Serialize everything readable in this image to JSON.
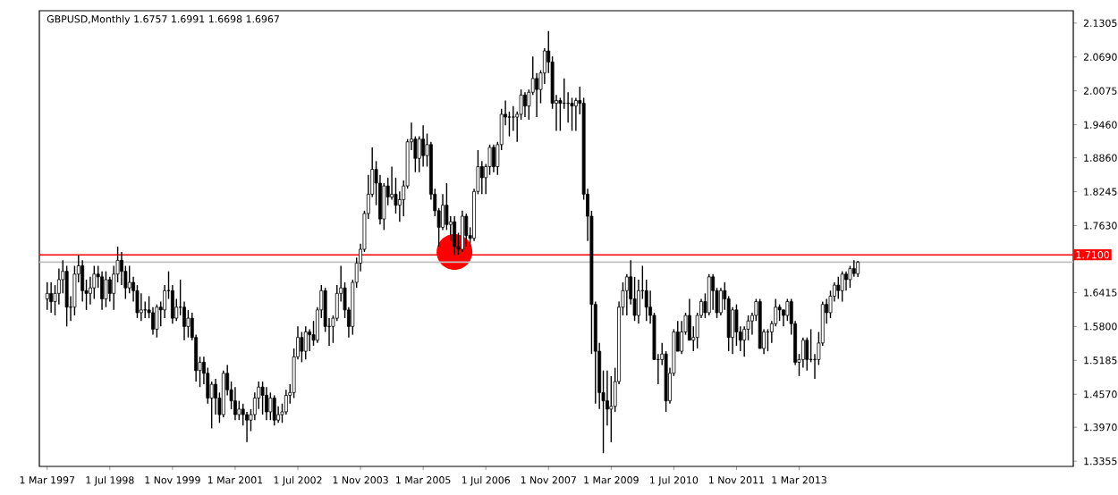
{
  "chart_data": {
    "type": "candlestick",
    "title": "GBPUSD,Monthly  1.6757 1.6991 1.6698 1.6967",
    "color": "#000000",
    "x": [
      "1997-03",
      "1997-04",
      "1997-05",
      "1997-06",
      "1997-07",
      "1997-08",
      "1997-09",
      "1997-10",
      "1997-11",
      "1997-12",
      "1998-01",
      "1998-02",
      "1998-03",
      "1998-04",
      "1998-05",
      "1998-06",
      "1998-07",
      "1998-08",
      "1998-09",
      "1998-10",
      "1998-11",
      "1998-12",
      "1999-01",
      "1999-02",
      "1999-03",
      "1999-04",
      "1999-05",
      "1999-06",
      "1999-07",
      "1999-08",
      "1999-09",
      "1999-10",
      "1999-11",
      "1999-12",
      "2000-01",
      "2000-02",
      "2000-03",
      "2000-04",
      "2000-05",
      "2000-06",
      "2000-07",
      "2000-08",
      "2000-09",
      "2000-10",
      "2000-11",
      "2000-12",
      "2001-01",
      "2001-02",
      "2001-03",
      "2001-04",
      "2001-05",
      "2001-06",
      "2001-07",
      "2001-08",
      "2001-09",
      "2001-10",
      "2001-11",
      "2001-12",
      "2002-01",
      "2002-02",
      "2002-03",
      "2002-04",
      "2002-05",
      "2002-06",
      "2002-07",
      "2002-08",
      "2002-09",
      "2002-10",
      "2002-11",
      "2002-12",
      "2003-01",
      "2003-02",
      "2003-03",
      "2003-04",
      "2003-05",
      "2003-06",
      "2003-07",
      "2003-08",
      "2003-09",
      "2003-10",
      "2003-11",
      "2003-12",
      "2004-01",
      "2004-02",
      "2004-03",
      "2004-04",
      "2004-05",
      "2004-06",
      "2004-07",
      "2004-08",
      "2004-09",
      "2004-10",
      "2004-11",
      "2004-12",
      "2005-01",
      "2005-02",
      "2005-03",
      "2005-04",
      "2005-05",
      "2005-06",
      "2005-07",
      "2005-08",
      "2005-09",
      "2005-10",
      "2005-11",
      "2005-12",
      "2006-01",
      "2006-02",
      "2006-03",
      "2006-04",
      "2006-05",
      "2006-06",
      "2006-07",
      "2006-08",
      "2006-09",
      "2006-10",
      "2006-11",
      "2006-12",
      "2007-01",
      "2007-02",
      "2007-03",
      "2007-04",
      "2007-05",
      "2007-06",
      "2007-07",
      "2007-08",
      "2007-09",
      "2007-10",
      "2007-11",
      "2007-12",
      "2008-01",
      "2008-02",
      "2008-03",
      "2008-04",
      "2008-05",
      "2008-06",
      "2008-07",
      "2008-08",
      "2008-09",
      "2008-10",
      "2008-11",
      "2008-12",
      "2009-01",
      "2009-02",
      "2009-03",
      "2009-04",
      "2009-05",
      "2009-06",
      "2009-07",
      "2009-08",
      "2009-09",
      "2009-10",
      "2009-11",
      "2009-12",
      "2010-01",
      "2010-02",
      "2010-03",
      "2010-04",
      "2010-05",
      "2010-06",
      "2010-07",
      "2010-08",
      "2010-09",
      "2010-10",
      "2010-11",
      "2010-12",
      "2011-01",
      "2011-02",
      "2011-03",
      "2011-04",
      "2011-05",
      "2011-06",
      "2011-07",
      "2011-08",
      "2011-09",
      "2011-10",
      "2011-11",
      "2011-12",
      "2012-01",
      "2012-02",
      "2012-03",
      "2012-04",
      "2012-05",
      "2012-06",
      "2012-07",
      "2012-08",
      "2012-09",
      "2012-10",
      "2012-11",
      "2012-12",
      "2013-01",
      "2013-02",
      "2013-03",
      "2013-04",
      "2013-05",
      "2013-06",
      "2013-07",
      "2013-08",
      "2013-09",
      "2013-10",
      "2013-11",
      "2013-12",
      "2014-01",
      "2014-02",
      "2014-03",
      "2014-04",
      "2014-05",
      "2014-06"
    ],
    "ohlc": [
      [
        1.63,
        1.66,
        1.61,
        1.64
      ],
      [
        1.64,
        1.66,
        1.605,
        1.625
      ],
      [
        1.625,
        1.655,
        1.6,
        1.64
      ],
      [
        1.64,
        1.685,
        1.62,
        1.665
      ],
      [
        1.665,
        1.7,
        1.64,
        1.68
      ],
      [
        1.68,
        1.69,
        1.58,
        1.615
      ],
      [
        1.615,
        1.635,
        1.59,
        1.615
      ],
      [
        1.615,
        1.69,
        1.6,
        1.675
      ],
      [
        1.675,
        1.71,
        1.66,
        1.69
      ],
      [
        1.69,
        1.7,
        1.625,
        1.645
      ],
      [
        1.645,
        1.665,
        1.61,
        1.64
      ],
      [
        1.64,
        1.67,
        1.62,
        1.65
      ],
      [
        1.65,
        1.69,
        1.63,
        1.675
      ],
      [
        1.675,
        1.69,
        1.65,
        1.67
      ],
      [
        1.67,
        1.68,
        1.61,
        1.63
      ],
      [
        1.63,
        1.68,
        1.615,
        1.665
      ],
      [
        1.665,
        1.67,
        1.625,
        1.64
      ],
      [
        1.64,
        1.69,
        1.61,
        1.675
      ],
      [
        1.675,
        1.725,
        1.66,
        1.7
      ],
      [
        1.7,
        1.715,
        1.655,
        1.68
      ],
      [
        1.68,
        1.69,
        1.63,
        1.65
      ],
      [
        1.65,
        1.69,
        1.64,
        1.66
      ],
      [
        1.66,
        1.67,
        1.625,
        1.645
      ],
      [
        1.645,
        1.655,
        1.595,
        1.605
      ],
      [
        1.605,
        1.64,
        1.59,
        1.61
      ],
      [
        1.61,
        1.625,
        1.595,
        1.61
      ],
      [
        1.61,
        1.635,
        1.595,
        1.605
      ],
      [
        1.605,
        1.615,
        1.565,
        1.575
      ],
      [
        1.575,
        1.62,
        1.56,
        1.615
      ],
      [
        1.615,
        1.625,
        1.58,
        1.61
      ],
      [
        1.61,
        1.655,
        1.595,
        1.645
      ],
      [
        1.645,
        1.68,
        1.63,
        1.645
      ],
      [
        1.645,
        1.655,
        1.585,
        1.595
      ],
      [
        1.595,
        1.63,
        1.59,
        1.615
      ],
      [
        1.615,
        1.665,
        1.6,
        1.615
      ],
      [
        1.615,
        1.625,
        1.555,
        1.58
      ],
      [
        1.58,
        1.61,
        1.56,
        1.595
      ],
      [
        1.595,
        1.605,
        1.555,
        1.56
      ],
      [
        1.56,
        1.565,
        1.48,
        1.5
      ],
      [
        1.5,
        1.525,
        1.47,
        1.515
      ],
      [
        1.515,
        1.525,
        1.475,
        1.495
      ],
      [
        1.495,
        1.505,
        1.44,
        1.45
      ],
      [
        1.45,
        1.48,
        1.395,
        1.475
      ],
      [
        1.475,
        1.485,
        1.42,
        1.45
      ],
      [
        1.45,
        1.46,
        1.405,
        1.42
      ],
      [
        1.42,
        1.5,
        1.415,
        1.495
      ],
      [
        1.495,
        1.51,
        1.455,
        1.465
      ],
      [
        1.465,
        1.48,
        1.43,
        1.445
      ],
      [
        1.445,
        1.47,
        1.41,
        1.42
      ],
      [
        1.42,
        1.445,
        1.41,
        1.43
      ],
      [
        1.43,
        1.44,
        1.4,
        1.42
      ],
      [
        1.42,
        1.425,
        1.37,
        1.41
      ],
      [
        1.41,
        1.43,
        1.39,
        1.42
      ],
      [
        1.42,
        1.46,
        1.41,
        1.45
      ],
      [
        1.45,
        1.48,
        1.43,
        1.47
      ],
      [
        1.47,
        1.48,
        1.42,
        1.455
      ],
      [
        1.455,
        1.47,
        1.41,
        1.425
      ],
      [
        1.425,
        1.46,
        1.41,
        1.45
      ],
      [
        1.45,
        1.455,
        1.4,
        1.41
      ],
      [
        1.41,
        1.435,
        1.405,
        1.42
      ],
      [
        1.42,
        1.44,
        1.405,
        1.425
      ],
      [
        1.425,
        1.465,
        1.42,
        1.455
      ],
      [
        1.455,
        1.475,
        1.44,
        1.46
      ],
      [
        1.46,
        1.54,
        1.45,
        1.525
      ],
      [
        1.525,
        1.58,
        1.52,
        1.56
      ],
      [
        1.56,
        1.57,
        1.515,
        1.535
      ],
      [
        1.535,
        1.58,
        1.52,
        1.57
      ],
      [
        1.57,
        1.575,
        1.535,
        1.565
      ],
      [
        1.565,
        1.59,
        1.545,
        1.555
      ],
      [
        1.555,
        1.615,
        1.55,
        1.61
      ],
      [
        1.61,
        1.655,
        1.595,
        1.645
      ],
      [
        1.645,
        1.65,
        1.57,
        1.58
      ],
      [
        1.58,
        1.595,
        1.545,
        1.58
      ],
      [
        1.58,
        1.6,
        1.55,
        1.595
      ],
      [
        1.595,
        1.655,
        1.59,
        1.64
      ],
      [
        1.64,
        1.69,
        1.625,
        1.65
      ],
      [
        1.65,
        1.66,
        1.595,
        1.61
      ],
      [
        1.61,
        1.615,
        1.56,
        1.58
      ],
      [
        1.58,
        1.665,
        1.565,
        1.66
      ],
      [
        1.66,
        1.705,
        1.65,
        1.695
      ],
      [
        1.695,
        1.73,
        1.68,
        1.72
      ],
      [
        1.72,
        1.79,
        1.715,
        1.785
      ],
      [
        1.785,
        1.855,
        1.775,
        1.82
      ],
      [
        1.82,
        1.905,
        1.815,
        1.865
      ],
      [
        1.865,
        1.88,
        1.8,
        1.84
      ],
      [
        1.84,
        1.855,
        1.765,
        1.775
      ],
      [
        1.775,
        1.84,
        1.755,
        1.835
      ],
      [
        1.835,
        1.85,
        1.8,
        1.815
      ],
      [
        1.815,
        1.87,
        1.81,
        1.82
      ],
      [
        1.82,
        1.85,
        1.785,
        1.8
      ],
      [
        1.8,
        1.825,
        1.77,
        1.81
      ],
      [
        1.81,
        1.845,
        1.78,
        1.835
      ],
      [
        1.835,
        1.92,
        1.83,
        1.915
      ],
      [
        1.915,
        1.95,
        1.9,
        1.92
      ],
      [
        1.92,
        1.925,
        1.86,
        1.885
      ],
      [
        1.885,
        1.925,
        1.86,
        1.92
      ],
      [
        1.92,
        1.945,
        1.87,
        1.89
      ],
      [
        1.89,
        1.93,
        1.87,
        1.91
      ],
      [
        1.91,
        1.915,
        1.81,
        1.82
      ],
      [
        1.82,
        1.83,
        1.78,
        1.79
      ],
      [
        1.79,
        1.795,
        1.725,
        1.76
      ],
      [
        1.76,
        1.82,
        1.755,
        1.8
      ],
      [
        1.8,
        1.84,
        1.755,
        1.765
      ],
      [
        1.765,
        1.78,
        1.735,
        1.77
      ],
      [
        1.77,
        1.78,
        1.71,
        1.725
      ],
      [
        1.725,
        1.75,
        1.71,
        1.72
      ],
      [
        1.72,
        1.79,
        1.715,
        1.78
      ],
      [
        1.78,
        1.785,
        1.725,
        1.745
      ],
      [
        1.745,
        1.76,
        1.725,
        1.74
      ],
      [
        1.74,
        1.83,
        1.735,
        1.825
      ],
      [
        1.825,
        1.9,
        1.82,
        1.87
      ],
      [
        1.87,
        1.88,
        1.82,
        1.85
      ],
      [
        1.85,
        1.875,
        1.82,
        1.87
      ],
      [
        1.87,
        1.91,
        1.855,
        1.905
      ],
      [
        1.905,
        1.91,
        1.86,
        1.87
      ],
      [
        1.87,
        1.915,
        1.855,
        1.91
      ],
      [
        1.91,
        1.975,
        1.9,
        1.965
      ],
      [
        1.965,
        1.99,
        1.945,
        1.96
      ],
      [
        1.96,
        1.97,
        1.925,
        1.96
      ],
      [
        1.96,
        1.98,
        1.935,
        1.96
      ],
      [
        1.96,
        1.97,
        1.915,
        1.965
      ],
      [
        1.965,
        2.01,
        1.955,
        2.0
      ],
      [
        2.0,
        2.005,
        1.96,
        1.98
      ],
      [
        1.98,
        2.01,
        1.955,
        2.005
      ],
      [
        2.005,
        2.07,
        2.0,
        2.03
      ],
      [
        2.03,
        2.04,
        1.96,
        2.01
      ],
      [
        2.01,
        2.045,
        1.985,
        2.04
      ],
      [
        2.04,
        2.085,
        2.02,
        2.08
      ],
      [
        2.08,
        2.116,
        2.04,
        2.06
      ],
      [
        2.06,
        2.07,
        1.975,
        1.985
      ],
      [
        1.985,
        2.0,
        1.935,
        1.99
      ],
      [
        1.99,
        1.995,
        1.935,
        1.985
      ],
      [
        1.985,
        2.03,
        1.975,
        1.985
      ],
      [
        1.985,
        2.005,
        1.95,
        1.985
      ],
      [
        1.985,
        1.995,
        1.935,
        1.98
      ],
      [
        1.98,
        1.995,
        1.935,
        1.99
      ],
      [
        1.99,
        2.015,
        1.965,
        1.985
      ],
      [
        1.985,
        1.995,
        1.81,
        1.82
      ],
      [
        1.82,
        1.83,
        1.735,
        1.78
      ],
      [
        1.78,
        1.79,
        1.53,
        1.62
      ],
      [
        1.62,
        1.625,
        1.44,
        1.535
      ],
      [
        1.535,
        1.55,
        1.43,
        1.46
      ],
      [
        1.46,
        1.5,
        1.35,
        1.445
      ],
      [
        1.445,
        1.5,
        1.4,
        1.43
      ],
      [
        1.43,
        1.49,
        1.37,
        1.435
      ],
      [
        1.435,
        1.505,
        1.425,
        1.48
      ],
      [
        1.48,
        1.625,
        1.475,
        1.615
      ],
      [
        1.615,
        1.66,
        1.6,
        1.645
      ],
      [
        1.645,
        1.675,
        1.6,
        1.67
      ],
      [
        1.67,
        1.7,
        1.62,
        1.63
      ],
      [
        1.63,
        1.67,
        1.59,
        1.6
      ],
      [
        1.6,
        1.665,
        1.585,
        1.645
      ],
      [
        1.645,
        1.69,
        1.63,
        1.645
      ],
      [
        1.645,
        1.665,
        1.59,
        1.615
      ],
      [
        1.615,
        1.645,
        1.585,
        1.6
      ],
      [
        1.6,
        1.605,
        1.52,
        1.52
      ],
      [
        1.52,
        1.53,
        1.475,
        1.52
      ],
      [
        1.52,
        1.55,
        1.51,
        1.53
      ],
      [
        1.53,
        1.535,
        1.425,
        1.445
      ],
      [
        1.445,
        1.505,
        1.44,
        1.495
      ],
      [
        1.495,
        1.575,
        1.49,
        1.57
      ],
      [
        1.57,
        1.59,
        1.535,
        1.535
      ],
      [
        1.535,
        1.59,
        1.53,
        1.57
      ],
      [
        1.57,
        1.605,
        1.565,
        1.6
      ],
      [
        1.6,
        1.63,
        1.555,
        1.555
      ],
      [
        1.555,
        1.58,
        1.535,
        1.56
      ],
      [
        1.56,
        1.605,
        1.54,
        1.6
      ],
      [
        1.6,
        1.63,
        1.595,
        1.625
      ],
      [
        1.625,
        1.64,
        1.595,
        1.605
      ],
      [
        1.605,
        1.675,
        1.6,
        1.67
      ],
      [
        1.67,
        1.675,
        1.61,
        1.645
      ],
      [
        1.645,
        1.65,
        1.595,
        1.605
      ],
      [
        1.605,
        1.65,
        1.6,
        1.645
      ],
      [
        1.645,
        1.66,
        1.61,
        1.63
      ],
      [
        1.63,
        1.635,
        1.535,
        1.56
      ],
      [
        1.56,
        1.615,
        1.53,
        1.61
      ],
      [
        1.61,
        1.62,
        1.545,
        1.57
      ],
      [
        1.57,
        1.58,
        1.535,
        1.555
      ],
      [
        1.555,
        1.58,
        1.525,
        1.575
      ],
      [
        1.575,
        1.6,
        1.555,
        1.59
      ],
      [
        1.59,
        1.605,
        1.565,
        1.6
      ],
      [
        1.6,
        1.63,
        1.59,
        1.625
      ],
      [
        1.625,
        1.63,
        1.54,
        1.54
      ],
      [
        1.54,
        1.575,
        1.53,
        1.57
      ],
      [
        1.57,
        1.575,
        1.535,
        1.57
      ],
      [
        1.57,
        1.59,
        1.55,
        1.585
      ],
      [
        1.585,
        1.63,
        1.58,
        1.615
      ],
      [
        1.615,
        1.62,
        1.59,
        1.61
      ],
      [
        1.61,
        1.61,
        1.58,
        1.6
      ],
      [
        1.6,
        1.63,
        1.59,
        1.625
      ],
      [
        1.625,
        1.63,
        1.565,
        1.585
      ],
      [
        1.585,
        1.59,
        1.51,
        1.515
      ],
      [
        1.515,
        1.53,
        1.49,
        1.52
      ],
      [
        1.52,
        1.56,
        1.505,
        1.555
      ],
      [
        1.555,
        1.56,
        1.5,
        1.52
      ],
      [
        1.52,
        1.575,
        1.515,
        1.52
      ],
      [
        1.52,
        1.53,
        1.485,
        1.52
      ],
      [
        1.52,
        1.57,
        1.51,
        1.55
      ],
      [
        1.55,
        1.625,
        1.545,
        1.62
      ],
      [
        1.62,
        1.63,
        1.585,
        1.605
      ],
      [
        1.605,
        1.645,
        1.595,
        1.635
      ],
      [
        1.635,
        1.66,
        1.625,
        1.655
      ],
      [
        1.655,
        1.67,
        1.63,
        1.645
      ],
      [
        1.645,
        1.68,
        1.625,
        1.675
      ],
      [
        1.675,
        1.68,
        1.645,
        1.665
      ],
      [
        1.665,
        1.69,
        1.65,
        1.685
      ],
      [
        1.685,
        1.7,
        1.67,
        1.676
      ],
      [
        1.6757,
        1.6991,
        1.6698,
        1.6967
      ]
    ],
    "xlim": [
      "1997-01",
      "2019-01"
    ],
    "xticks": [
      {
        "value": "1997-03",
        "label": "1 Mar 1997"
      },
      {
        "value": "1998-07",
        "label": "1 Jul 1998"
      },
      {
        "value": "1999-11",
        "label": "1 Nov 1999"
      },
      {
        "value": "2001-03",
        "label": "1 Mar 2001"
      },
      {
        "value": "2002-07",
        "label": "1 Jul 2002"
      },
      {
        "value": "2003-11",
        "label": "1 Nov 2003"
      },
      {
        "value": "2005-03",
        "label": "1 Mar 2005"
      },
      {
        "value": "2006-07",
        "label": "1 Jul 2006"
      },
      {
        "value": "2007-11",
        "label": "1 Nov 2007"
      },
      {
        "value": "2009-03",
        "label": "1 Mar 2009"
      },
      {
        "value": "2010-07",
        "label": "1 Jul 2010"
      },
      {
        "value": "2011-11",
        "label": "1 Nov 2011"
      },
      {
        "value": "2013-03",
        "label": "1 Mar 2013"
      }
    ],
    "ylim": [
      1.326,
      2.153
    ],
    "yticks": [
      1.3355,
      {
        "value": 1.397,
        "label": "1.3970"
      },
      {
        "value": 1.457,
        "label": "1.4570"
      },
      1.5185,
      {
        "value": 1.58,
        "label": "1.5800"
      },
      1.6415,
      {
        "value": 1.763,
        "label": "1.7630"
      },
      1.8245,
      {
        "value": 1.886,
        "label": "1.8860"
      },
      {
        "value": 1.946,
        "label": "1.9460"
      },
      2.0075,
      {
        "value": 2.069,
        "label": "2.0690"
      },
      2.1305
    ],
    "series": [
      {
        "type": "scatter",
        "x": [
          "2005-11"
        ],
        "values": [
          1.715
        ],
        "color": "#ff0000",
        "marker": "circle"
      }
    ],
    "ref_lines": [
      {
        "axis": "y",
        "value": 1.71,
        "label": "1.7100",
        "color": "#ff0000"
      },
      {
        "axis": "y",
        "value": 1.6967,
        "color": "#c0c0c0"
      }
    ]
  }
}
